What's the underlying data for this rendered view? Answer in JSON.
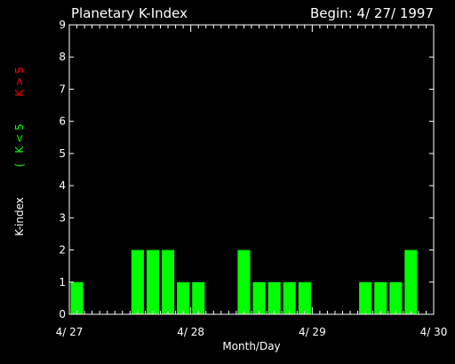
{
  "chart_data": {
    "type": "bar",
    "title": "Planetary K-Index",
    "subtitle": "Begin: 4/ 27/ 1997",
    "xlabel": "Month/Day",
    "ylabel": "K-index",
    "legend": {
      "open": "(",
      "green_label": "K < 5",
      "red_label": "K > 5",
      "placement": "left-vertical"
    },
    "ylim": [
      0,
      9
    ],
    "y_ticks": [
      "0",
      "1",
      "2",
      "3",
      "4",
      "5",
      "6",
      "7",
      "8",
      "9"
    ],
    "x_tick_labels": [
      "4/ 27",
      "4/ 28",
      "4/ 29",
      "4/ 30"
    ],
    "x_range_days": [
      0,
      3
    ],
    "interval_hours": 3,
    "values": [
      1,
      0,
      0,
      0,
      2,
      2,
      2,
      1,
      1,
      0,
      0,
      2,
      1,
      1,
      1,
      1,
      0,
      0,
      0,
      1,
      1,
      1,
      2,
      0
    ],
    "colors": {
      "background": "#000000",
      "axes": "#ffffff",
      "bar_low": "#00ff00",
      "bar_high": "#ff0000",
      "legend_green": "#00ff00",
      "legend_red": "#ff0000"
    }
  }
}
